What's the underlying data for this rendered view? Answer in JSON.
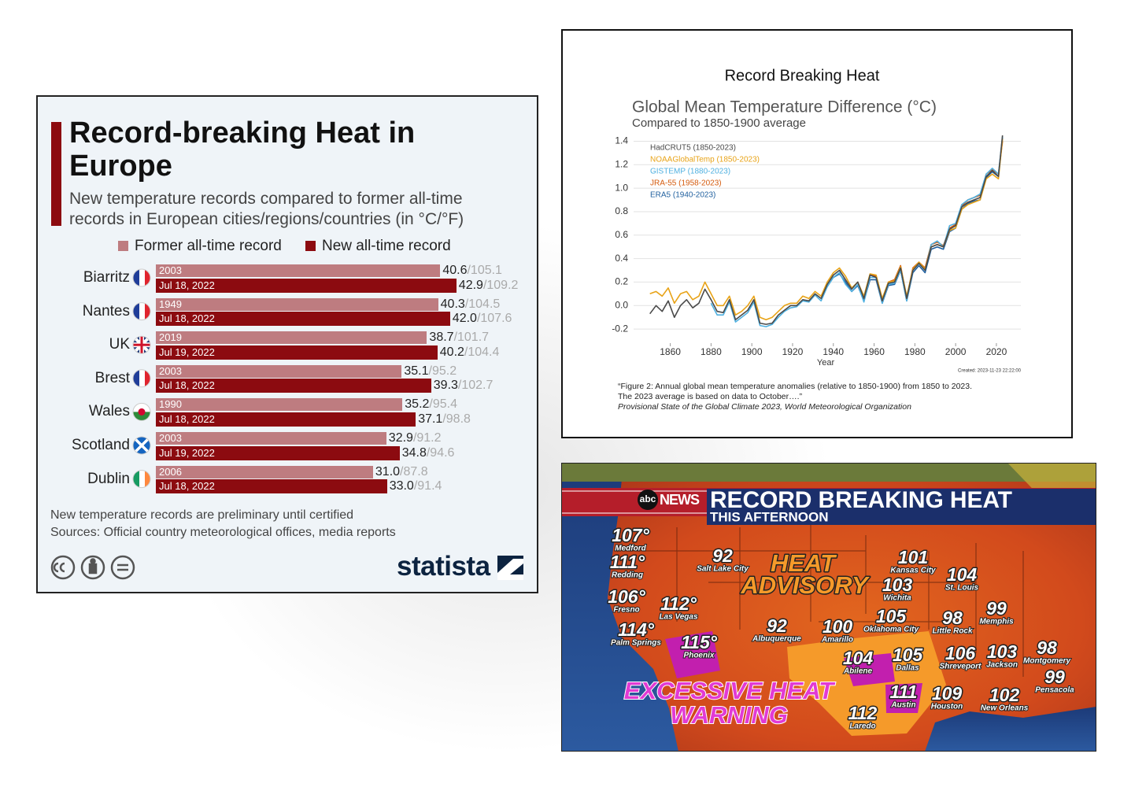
{
  "chart_data": [
    {
      "type": "bar",
      "orientation": "horizontal",
      "title": "Record-breaking Heat in Europe",
      "subtitle": "New temperature records compared to former all-time records in European cities/regions/countries (in °C/°F)",
      "categories": [
        "Biarritz",
        "Nantes",
        "UK",
        "Brest",
        "Wales",
        "Scotland",
        "Dublin"
      ],
      "series": [
        {
          "name": "Former all-time record",
          "color": "#be7c80",
          "values": [
            40.6,
            40.3,
            38.7,
            35.1,
            35.2,
            32.9,
            31.0
          ],
          "value_labels": [
            "40.6",
            "40.3",
            "38.7",
            "35.1",
            "35.2",
            "32.9",
            "31.0"
          ],
          "fahrenheit_labels": [
            "/105.1",
            "/104.5",
            "/101.7",
            "/95.2",
            "/95.4",
            "/91.2",
            "/87.8"
          ],
          "record_dates": [
            "2003",
            "1949",
            "2019",
            "2003",
            "1990",
            "2003",
            "2006"
          ]
        },
        {
          "name": "New all-time record",
          "color": "#8c0b10",
          "values": [
            42.9,
            42.0,
            40.2,
            39.3,
            37.1,
            34.8,
            33.0
          ],
          "value_labels": [
            "42.9",
            "42.0",
            "40.2",
            "39.3",
            "37.1",
            "34.8",
            "33.0"
          ],
          "fahrenheit_labels": [
            "/109.2",
            "/107.6",
            "/104.4",
            "/102.7",
            "/98.8",
            "/94.6",
            "/91.4"
          ],
          "record_dates": [
            "Jul 18, 2022",
            "Jul 18, 2022",
            "Jul 19, 2022",
            "Jul 18, 2022",
            "Jul 18, 2022",
            "Jul 19, 2022",
            "Jul 18, 2022"
          ]
        }
      ],
      "notes": [
        "New temperature records are preliminary until certified",
        "Sources: Official country meteorological offices, media reports"
      ],
      "logo": "statista"
    },
    {
      "type": "line",
      "header": "Record Breaking Heat",
      "title": "Global Mean Temperature Difference (°C)",
      "subtitle": "Compared to 1850-1900 average",
      "x_label": "Year",
      "x": [
        1850,
        1853,
        1856,
        1859,
        1862,
        1865,
        1868,
        1871,
        1874,
        1877,
        1880,
        1883,
        1886,
        1889,
        1892,
        1895,
        1898,
        1901,
        1904,
        1907,
        1910,
        1913,
        1916,
        1919,
        1922,
        1925,
        1928,
        1931,
        1934,
        1937,
        1940,
        1943,
        1946,
        1949,
        1952,
        1955,
        1958,
        1961,
        1964,
        1967,
        1970,
        1973,
        1976,
        1979,
        1982,
        1985,
        1988,
        1991,
        1994,
        1997,
        2000,
        2003,
        2006,
        2009,
        2012,
        2015,
        2018,
        2021,
        2023
      ],
      "series": [
        {
          "name": "HadCRUT5 (1850-2023)",
          "color": "#4a4a4a",
          "values": [
            -0.07,
            0.0,
            -0.05,
            0.04,
            -0.1,
            0.0,
            0.05,
            -0.02,
            0.02,
            0.14,
            0.05,
            -0.05,
            -0.06,
            0.05,
            -0.12,
            -0.08,
            -0.04,
            0.05,
            -0.15,
            -0.16,
            -0.15,
            -0.08,
            -0.04,
            0.0,
            0.0,
            0.05,
            0.04,
            0.1,
            0.06,
            0.18,
            0.26,
            0.3,
            0.22,
            0.14,
            0.2,
            0.06,
            0.26,
            0.24,
            0.04,
            0.19,
            0.2,
            0.32,
            0.06,
            0.3,
            0.36,
            0.3,
            0.5,
            0.52,
            0.5,
            0.65,
            0.68,
            0.84,
            0.88,
            0.9,
            0.92,
            1.1,
            1.15,
            1.1,
            1.45
          ]
        },
        {
          "name": "NOAAGlobalTemp (1850-2023)",
          "color": "#e8a317",
          "values": [
            0.1,
            0.12,
            0.08,
            0.15,
            0.02,
            0.1,
            0.12,
            0.05,
            0.08,
            0.2,
            0.1,
            0.0,
            0.0,
            0.08,
            -0.08,
            -0.05,
            0.0,
            0.08,
            -0.1,
            -0.12,
            -0.1,
            -0.05,
            0.0,
            0.02,
            0.02,
            0.08,
            0.06,
            0.12,
            0.08,
            0.2,
            0.28,
            0.32,
            0.25,
            0.15,
            0.2,
            0.08,
            0.27,
            0.26,
            0.06,
            0.2,
            0.21,
            0.33,
            0.08,
            0.31,
            0.37,
            0.31,
            0.5,
            0.52,
            0.5,
            0.64,
            0.66,
            0.82,
            0.86,
            0.88,
            0.9,
            1.08,
            1.12,
            1.08,
            1.42
          ]
        },
        {
          "name": "GISTEMP (1880-2023)",
          "color": "#4fb0e0",
          "values": [
            null,
            null,
            null,
            null,
            null,
            null,
            null,
            null,
            null,
            null,
            0.02,
            -0.08,
            -0.08,
            0.03,
            -0.14,
            -0.1,
            -0.06,
            0.03,
            -0.17,
            -0.18,
            -0.16,
            -0.1,
            -0.05,
            -0.02,
            -0.01,
            0.04,
            0.03,
            0.09,
            0.04,
            0.16,
            0.24,
            0.28,
            0.18,
            0.12,
            0.18,
            0.03,
            0.24,
            0.24,
            0.02,
            0.18,
            0.19,
            0.3,
            0.04,
            0.3,
            0.36,
            0.3,
            0.52,
            0.55,
            0.5,
            0.68,
            0.7,
            0.86,
            0.9,
            0.92,
            0.95,
            1.12,
            1.17,
            1.12,
            1.44
          ]
        },
        {
          "name": "JRA-55 (1958-2023)",
          "color": "#d45a0c",
          "values": [
            null,
            null,
            null,
            null,
            null,
            null,
            null,
            null,
            null,
            null,
            null,
            null,
            null,
            null,
            null,
            null,
            null,
            null,
            null,
            null,
            null,
            null,
            null,
            null,
            null,
            null,
            null,
            null,
            null,
            null,
            null,
            null,
            null,
            null,
            null,
            null,
            0.27,
            0.25,
            0.05,
            0.2,
            0.22,
            0.34,
            0.06,
            0.32,
            0.37,
            0.32,
            0.52,
            0.54,
            0.51,
            0.66,
            0.69,
            0.85,
            0.9,
            0.92,
            0.94,
            1.12,
            1.16,
            1.12,
            1.4
          ]
        },
        {
          "name": "ERA5 (1940-2023)",
          "color": "#1f5f9e",
          "values": [
            null,
            null,
            null,
            null,
            null,
            null,
            null,
            null,
            null,
            null,
            null,
            null,
            null,
            null,
            null,
            null,
            null,
            null,
            null,
            null,
            null,
            null,
            null,
            null,
            null,
            null,
            null,
            null,
            null,
            null,
            0.24,
            0.27,
            0.2,
            0.12,
            0.17,
            0.04,
            0.22,
            0.22,
            0.02,
            0.17,
            0.18,
            0.3,
            0.04,
            0.28,
            0.34,
            0.28,
            0.48,
            0.5,
            0.48,
            0.63,
            0.66,
            0.82,
            0.87,
            0.89,
            0.9,
            1.09,
            1.14,
            1.1,
            1.43
          ]
        }
      ],
      "xlim": [
        1842,
        2032
      ],
      "ylim": [
        -0.3,
        1.45
      ],
      "xticks": [
        1860,
        1880,
        1900,
        1920,
        1940,
        1960,
        1980,
        2000,
        2020
      ],
      "yticks": [
        -0.2,
        {
          "value": 0,
          "label": "0.0"
        },
        0.2,
        0.4,
        0.6,
        0.8,
        {
          "value": 1,
          "label": "1.0"
        },
        1.2,
        1.4
      ],
      "grid": true,
      "created": "Created: 2023-11-23 22:22:00",
      "caption": [
        "“Figure 2:  Annual global mean temperature anomalies (relative to 1850-1900) from 1850 to 2023.",
        "The 2023 average is based on data to October….”"
      ],
      "source": "Provisional State of the Global Climate 2023, World Meteorological Organization"
    }
  ],
  "map": {
    "network": "abc",
    "network_suffix": "NEWS",
    "headline": "RECORD BREAKING HEAT",
    "subheadline": "THIS AFTERNOON",
    "advisory_label": [
      "HEAT",
      "ADVISORY"
    ],
    "warning_label": [
      "EXCESSIVE HEAT",
      "WARNING"
    ],
    "cities": [
      {
        "temp": "107°",
        "name": "Medford"
      },
      {
        "temp": "111°",
        "name": "Redding"
      },
      {
        "temp": "106°",
        "name": "Fresno"
      },
      {
        "temp": "112°",
        "name": "Las Vegas"
      },
      {
        "temp": "114°",
        "name": "Palm Springs"
      },
      {
        "temp": "115°",
        "name": "Phoenix"
      },
      {
        "temp": "92",
        "name": "Salt Lake City"
      },
      {
        "temp": "101",
        "name": "Kansas City"
      },
      {
        "temp": "104",
        "name": "St. Louis"
      },
      {
        "temp": "103",
        "name": "Wichita"
      },
      {
        "temp": "99",
        "name": "Memphis"
      },
      {
        "temp": "105",
        "name": "Oklahoma City"
      },
      {
        "temp": "98",
        "name": "Little Rock"
      },
      {
        "temp": "92",
        "name": "Albuquerque"
      },
      {
        "temp": "100",
        "name": "Amarillo"
      },
      {
        "temp": "104",
        "name": "Abilene"
      },
      {
        "temp": "105",
        "name": "Dallas"
      },
      {
        "temp": "106",
        "name": "Shreveport"
      },
      {
        "temp": "103",
        "name": "Jackson"
      },
      {
        "temp": "98",
        "name": "Montgomery"
      },
      {
        "temp": "99",
        "name": "Pensacola"
      },
      {
        "temp": "111",
        "name": "Austin"
      },
      {
        "temp": "109",
        "name": "Houston"
      },
      {
        "temp": "102",
        "name": "New Orleans"
      },
      {
        "temp": "112",
        "name": "Laredo"
      }
    ]
  }
}
